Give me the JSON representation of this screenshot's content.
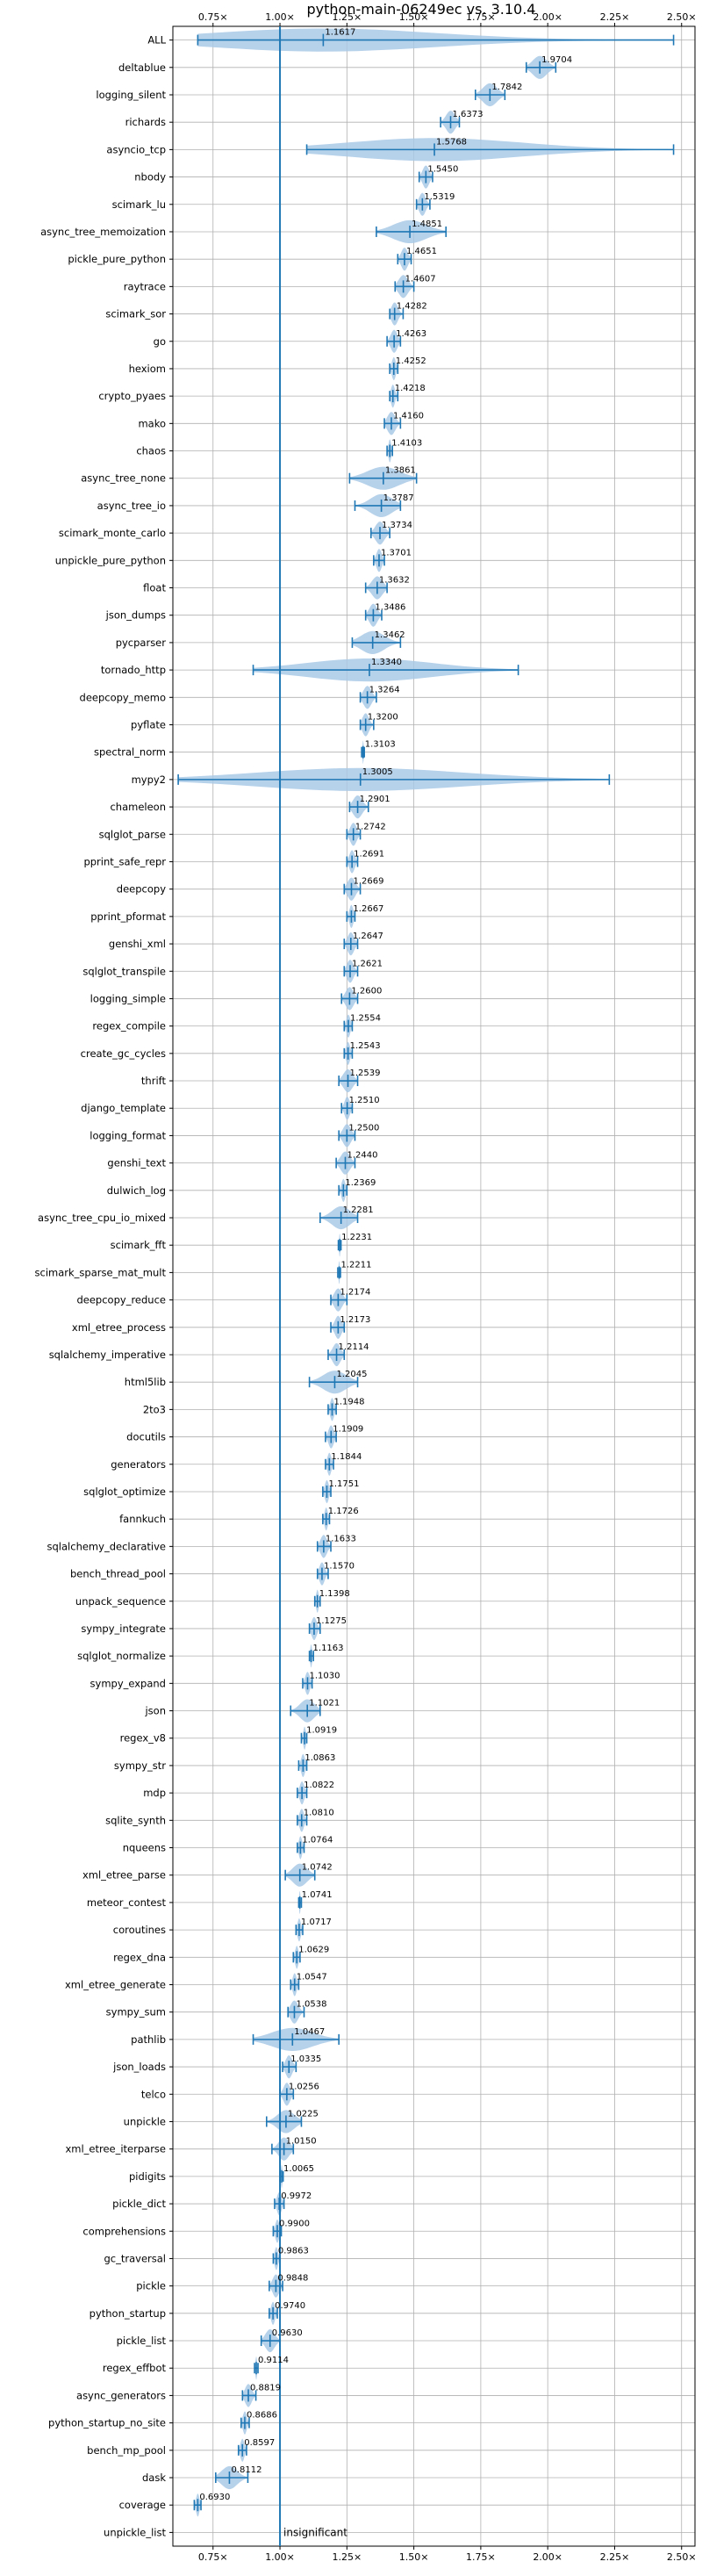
{
  "chart_data": {
    "type": "violin",
    "title": "python-main-06249ec vs. 3.10.4",
    "xlabel": "",
    "ylabel": "",
    "xlim": [
      0.6,
      2.55
    ],
    "xticks": [
      0.75,
      1.0,
      1.25,
      1.5,
      1.75,
      2.0,
      2.25,
      2.5
    ],
    "xtick_labels": [
      "0.75×",
      "1.00×",
      "1.25×",
      "1.50×",
      "1.75×",
      "2.00×",
      "2.25×",
      "2.50×"
    ],
    "xaxis_position": "top-and-bottom",
    "grid": true,
    "reference_line": 1.0,
    "colors": {
      "violin": "#a9c9e6",
      "stroke": "#1f77b4",
      "grid": "#b0b0b0"
    },
    "insignificant_label": "insignificant",
    "benchmarks": [
      {
        "name": "ALL",
        "value": 1.1617,
        "value_label": "1.1617",
        "min": 0.693,
        "max": 2.47
      },
      {
        "name": "deltablue",
        "value": 1.9704,
        "value_label": "1.9704",
        "min": 1.92,
        "max": 2.03
      },
      {
        "name": "logging_silent",
        "value": 1.7842,
        "value_label": "1.7842",
        "min": 1.73,
        "max": 1.84
      },
      {
        "name": "richards",
        "value": 1.6373,
        "value_label": "1.6373",
        "min": 1.6,
        "max": 1.67
      },
      {
        "name": "asyncio_tcp",
        "value": 1.5768,
        "value_label": "1.5768",
        "min": 1.1,
        "max": 2.47
      },
      {
        "name": "nbody",
        "value": 1.545,
        "value_label": "1.5450",
        "min": 1.52,
        "max": 1.57
      },
      {
        "name": "scimark_lu",
        "value": 1.5319,
        "value_label": "1.5319",
        "min": 1.51,
        "max": 1.56
      },
      {
        "name": "async_tree_memoization",
        "value": 1.4851,
        "value_label": "1.4851",
        "min": 1.36,
        "max": 1.62
      },
      {
        "name": "pickle_pure_python",
        "value": 1.4651,
        "value_label": "1.4651",
        "min": 1.44,
        "max": 1.49
      },
      {
        "name": "raytrace",
        "value": 1.4607,
        "value_label": "1.4607",
        "min": 1.43,
        "max": 1.5
      },
      {
        "name": "scimark_sor",
        "value": 1.4282,
        "value_label": "1.4282",
        "min": 1.41,
        "max": 1.46
      },
      {
        "name": "go",
        "value": 1.4263,
        "value_label": "1.4263",
        "min": 1.4,
        "max": 1.45
      },
      {
        "name": "hexiom",
        "value": 1.4252,
        "value_label": "1.4252",
        "min": 1.41,
        "max": 1.44
      },
      {
        "name": "crypto_pyaes",
        "value": 1.4218,
        "value_label": "1.4218",
        "min": 1.41,
        "max": 1.44
      },
      {
        "name": "mako",
        "value": 1.416,
        "value_label": "1.4160",
        "min": 1.39,
        "max": 1.45
      },
      {
        "name": "chaos",
        "value": 1.4103,
        "value_label": "1.4103",
        "min": 1.4,
        "max": 1.42
      },
      {
        "name": "async_tree_none",
        "value": 1.3861,
        "value_label": "1.3861",
        "min": 1.26,
        "max": 1.51
      },
      {
        "name": "async_tree_io",
        "value": 1.3787,
        "value_label": "1.3787",
        "min": 1.28,
        "max": 1.45
      },
      {
        "name": "scimark_monte_carlo",
        "value": 1.3734,
        "value_label": "1.3734",
        "min": 1.34,
        "max": 1.41
      },
      {
        "name": "unpickle_pure_python",
        "value": 1.3701,
        "value_label": "1.3701",
        "min": 1.35,
        "max": 1.39
      },
      {
        "name": "float",
        "value": 1.3632,
        "value_label": "1.3632",
        "min": 1.32,
        "max": 1.4
      },
      {
        "name": "json_dumps",
        "value": 1.3486,
        "value_label": "1.3486",
        "min": 1.32,
        "max": 1.38
      },
      {
        "name": "pycparser",
        "value": 1.3462,
        "value_label": "1.3462",
        "min": 1.27,
        "max": 1.45
      },
      {
        "name": "tornado_http",
        "value": 1.334,
        "value_label": "1.3340",
        "min": 0.9,
        "max": 1.89
      },
      {
        "name": "deepcopy_memo",
        "value": 1.3264,
        "value_label": "1.3264",
        "min": 1.3,
        "max": 1.36
      },
      {
        "name": "pyflate",
        "value": 1.32,
        "value_label": "1.3200",
        "min": 1.3,
        "max": 1.35
      },
      {
        "name": "spectral_norm",
        "value": 1.3103,
        "value_label": "1.3103",
        "min": 1.305,
        "max": 1.315
      },
      {
        "name": "mypy2",
        "value": 1.3005,
        "value_label": "1.3005",
        "min": 0.62,
        "max": 2.23
      },
      {
        "name": "chameleon",
        "value": 1.2901,
        "value_label": "1.2901",
        "min": 1.26,
        "max": 1.33
      },
      {
        "name": "sqlglot_parse",
        "value": 1.2742,
        "value_label": "1.2742",
        "min": 1.25,
        "max": 1.3
      },
      {
        "name": "pprint_safe_repr",
        "value": 1.2691,
        "value_label": "1.2691",
        "min": 1.25,
        "max": 1.29
      },
      {
        "name": "deepcopy",
        "value": 1.2669,
        "value_label": "1.2669",
        "min": 1.24,
        "max": 1.3
      },
      {
        "name": "pprint_pformat",
        "value": 1.2667,
        "value_label": "1.2667",
        "min": 1.25,
        "max": 1.28
      },
      {
        "name": "genshi_xml",
        "value": 1.2647,
        "value_label": "1.2647",
        "min": 1.24,
        "max": 1.29
      },
      {
        "name": "sqlglot_transpile",
        "value": 1.2621,
        "value_label": "1.2621",
        "min": 1.24,
        "max": 1.29
      },
      {
        "name": "logging_simple",
        "value": 1.26,
        "value_label": "1.2600",
        "min": 1.23,
        "max": 1.29
      },
      {
        "name": "regex_compile",
        "value": 1.2554,
        "value_label": "1.2554",
        "min": 1.24,
        "max": 1.27
      },
      {
        "name": "create_gc_cycles",
        "value": 1.2543,
        "value_label": "1.2543",
        "min": 1.24,
        "max": 1.27
      },
      {
        "name": "thrift",
        "value": 1.2539,
        "value_label": "1.2539",
        "min": 1.22,
        "max": 1.29
      },
      {
        "name": "django_template",
        "value": 1.251,
        "value_label": "1.2510",
        "min": 1.23,
        "max": 1.27
      },
      {
        "name": "logging_format",
        "value": 1.25,
        "value_label": "1.2500",
        "min": 1.22,
        "max": 1.28
      },
      {
        "name": "genshi_text",
        "value": 1.244,
        "value_label": "1.2440",
        "min": 1.21,
        "max": 1.28
      },
      {
        "name": "dulwich_log",
        "value": 1.2369,
        "value_label": "1.2369",
        "min": 1.22,
        "max": 1.25
      },
      {
        "name": "async_tree_cpu_io_mixed",
        "value": 1.2281,
        "value_label": "1.2281",
        "min": 1.15,
        "max": 1.29
      },
      {
        "name": "scimark_fft",
        "value": 1.2231,
        "value_label": "1.2231",
        "min": 1.218,
        "max": 1.228
      },
      {
        "name": "scimark_sparse_mat_mult",
        "value": 1.2211,
        "value_label": "1.2211",
        "min": 1.216,
        "max": 1.226
      },
      {
        "name": "deepcopy_reduce",
        "value": 1.2174,
        "value_label": "1.2174",
        "min": 1.19,
        "max": 1.25
      },
      {
        "name": "xml_etree_process",
        "value": 1.2173,
        "value_label": "1.2173",
        "min": 1.19,
        "max": 1.24
      },
      {
        "name": "sqlalchemy_imperative",
        "value": 1.2114,
        "value_label": "1.2114",
        "min": 1.18,
        "max": 1.24
      },
      {
        "name": "html5lib",
        "value": 1.2045,
        "value_label": "1.2045",
        "min": 1.11,
        "max": 1.29
      },
      {
        "name": "2to3",
        "value": 1.1948,
        "value_label": "1.1948",
        "min": 1.18,
        "max": 1.21
      },
      {
        "name": "docutils",
        "value": 1.1909,
        "value_label": "1.1909",
        "min": 1.17,
        "max": 1.21
      },
      {
        "name": "generators",
        "value": 1.1844,
        "value_label": "1.1844",
        "min": 1.17,
        "max": 1.2
      },
      {
        "name": "sqlglot_optimize",
        "value": 1.1751,
        "value_label": "1.1751",
        "min": 1.16,
        "max": 1.19
      },
      {
        "name": "fannkuch",
        "value": 1.1726,
        "value_label": "1.1726",
        "min": 1.16,
        "max": 1.185
      },
      {
        "name": "sqlalchemy_declarative",
        "value": 1.1633,
        "value_label": "1.1633",
        "min": 1.14,
        "max": 1.19
      },
      {
        "name": "bench_thread_pool",
        "value": 1.157,
        "value_label": "1.1570",
        "min": 1.14,
        "max": 1.18
      },
      {
        "name": "unpack_sequence",
        "value": 1.1398,
        "value_label": "1.1398",
        "min": 1.13,
        "max": 1.15
      },
      {
        "name": "sympy_integrate",
        "value": 1.1275,
        "value_label": "1.1275",
        "min": 1.11,
        "max": 1.15
      },
      {
        "name": "sqlglot_normalize",
        "value": 1.1163,
        "value_label": "1.1163",
        "min": 1.11,
        "max": 1.125
      },
      {
        "name": "sympy_expand",
        "value": 1.103,
        "value_label": "1.1030",
        "min": 1.085,
        "max": 1.12
      },
      {
        "name": "json",
        "value": 1.1021,
        "value_label": "1.1021",
        "min": 1.04,
        "max": 1.15
      },
      {
        "name": "regex_v8",
        "value": 1.0919,
        "value_label": "1.0919",
        "min": 1.08,
        "max": 1.1
      },
      {
        "name": "sympy_str",
        "value": 1.0863,
        "value_label": "1.0863",
        "min": 1.07,
        "max": 1.1
      },
      {
        "name": "mdp",
        "value": 1.0822,
        "value_label": "1.0822",
        "min": 1.065,
        "max": 1.1
      },
      {
        "name": "sqlite_synth",
        "value": 1.081,
        "value_label": "1.0810",
        "min": 1.065,
        "max": 1.1
      },
      {
        "name": "nqueens",
        "value": 1.0764,
        "value_label": "1.0764",
        "min": 1.065,
        "max": 1.09
      },
      {
        "name": "xml_etree_parse",
        "value": 1.0742,
        "value_label": "1.0742",
        "min": 1.02,
        "max": 1.13
      },
      {
        "name": "meteor_contest",
        "value": 1.0741,
        "value_label": "1.0741",
        "min": 1.07,
        "max": 1.08
      },
      {
        "name": "coroutines",
        "value": 1.0717,
        "value_label": "1.0717",
        "min": 1.06,
        "max": 1.085
      },
      {
        "name": "regex_dna",
        "value": 1.0629,
        "value_label": "1.0629",
        "min": 1.05,
        "max": 1.075
      },
      {
        "name": "xml_etree_generate",
        "value": 1.0547,
        "value_label": "1.0547",
        "min": 1.04,
        "max": 1.07
      },
      {
        "name": "sympy_sum",
        "value": 1.0538,
        "value_label": "1.0538",
        "min": 1.03,
        "max": 1.09
      },
      {
        "name": "pathlib",
        "value": 1.0467,
        "value_label": "1.0467",
        "min": 0.9,
        "max": 1.22
      },
      {
        "name": "json_loads",
        "value": 1.0335,
        "value_label": "1.0335",
        "min": 1.01,
        "max": 1.06
      },
      {
        "name": "telco",
        "value": 1.0256,
        "value_label": "1.0256",
        "min": 1.0,
        "max": 1.05
      },
      {
        "name": "unpickle",
        "value": 1.0225,
        "value_label": "1.0225",
        "min": 0.95,
        "max": 1.08
      },
      {
        "name": "xml_etree_iterparse",
        "value": 1.015,
        "value_label": "1.0150",
        "min": 0.97,
        "max": 1.05
      },
      {
        "name": "pidigits",
        "value": 1.0065,
        "value_label": "1.0065",
        "min": 1.0,
        "max": 1.012
      },
      {
        "name": "pickle_dict",
        "value": 0.9972,
        "value_label": "0.9972",
        "min": 0.98,
        "max": 1.015
      },
      {
        "name": "comprehensions",
        "value": 0.99,
        "value_label": "0.9900",
        "min": 0.975,
        "max": 1.005
      },
      {
        "name": "gc_traversal",
        "value": 0.9863,
        "value_label": "0.9863",
        "min": 0.975,
        "max": 1.0
      },
      {
        "name": "pickle",
        "value": 0.9848,
        "value_label": "0.9848",
        "min": 0.96,
        "max": 1.01
      },
      {
        "name": "python_startup",
        "value": 0.974,
        "value_label": "0.9740",
        "min": 0.96,
        "max": 0.99
      },
      {
        "name": "pickle_list",
        "value": 0.963,
        "value_label": "0.9630",
        "min": 0.93,
        "max": 1.0
      },
      {
        "name": "regex_effbot",
        "value": 0.9114,
        "value_label": "0.9114",
        "min": 0.905,
        "max": 0.918
      },
      {
        "name": "async_generators",
        "value": 0.8819,
        "value_label": "0.8819",
        "min": 0.86,
        "max": 0.91
      },
      {
        "name": "python_startup_no_site",
        "value": 0.8686,
        "value_label": "0.8686",
        "min": 0.855,
        "max": 0.885
      },
      {
        "name": "bench_mp_pool",
        "value": 0.8597,
        "value_label": "0.8597",
        "min": 0.845,
        "max": 0.875
      },
      {
        "name": "dask",
        "value": 0.8112,
        "value_label": "0.8112",
        "min": 0.76,
        "max": 0.88
      },
      {
        "name": "coverage",
        "value": 0.693,
        "value_label": "0.6930",
        "min": 0.68,
        "max": 0.705
      },
      {
        "name": "unpickle_list",
        "value": 1.0,
        "value_label": "",
        "min": 1.0,
        "max": 1.0,
        "insignificant": true
      }
    ]
  }
}
